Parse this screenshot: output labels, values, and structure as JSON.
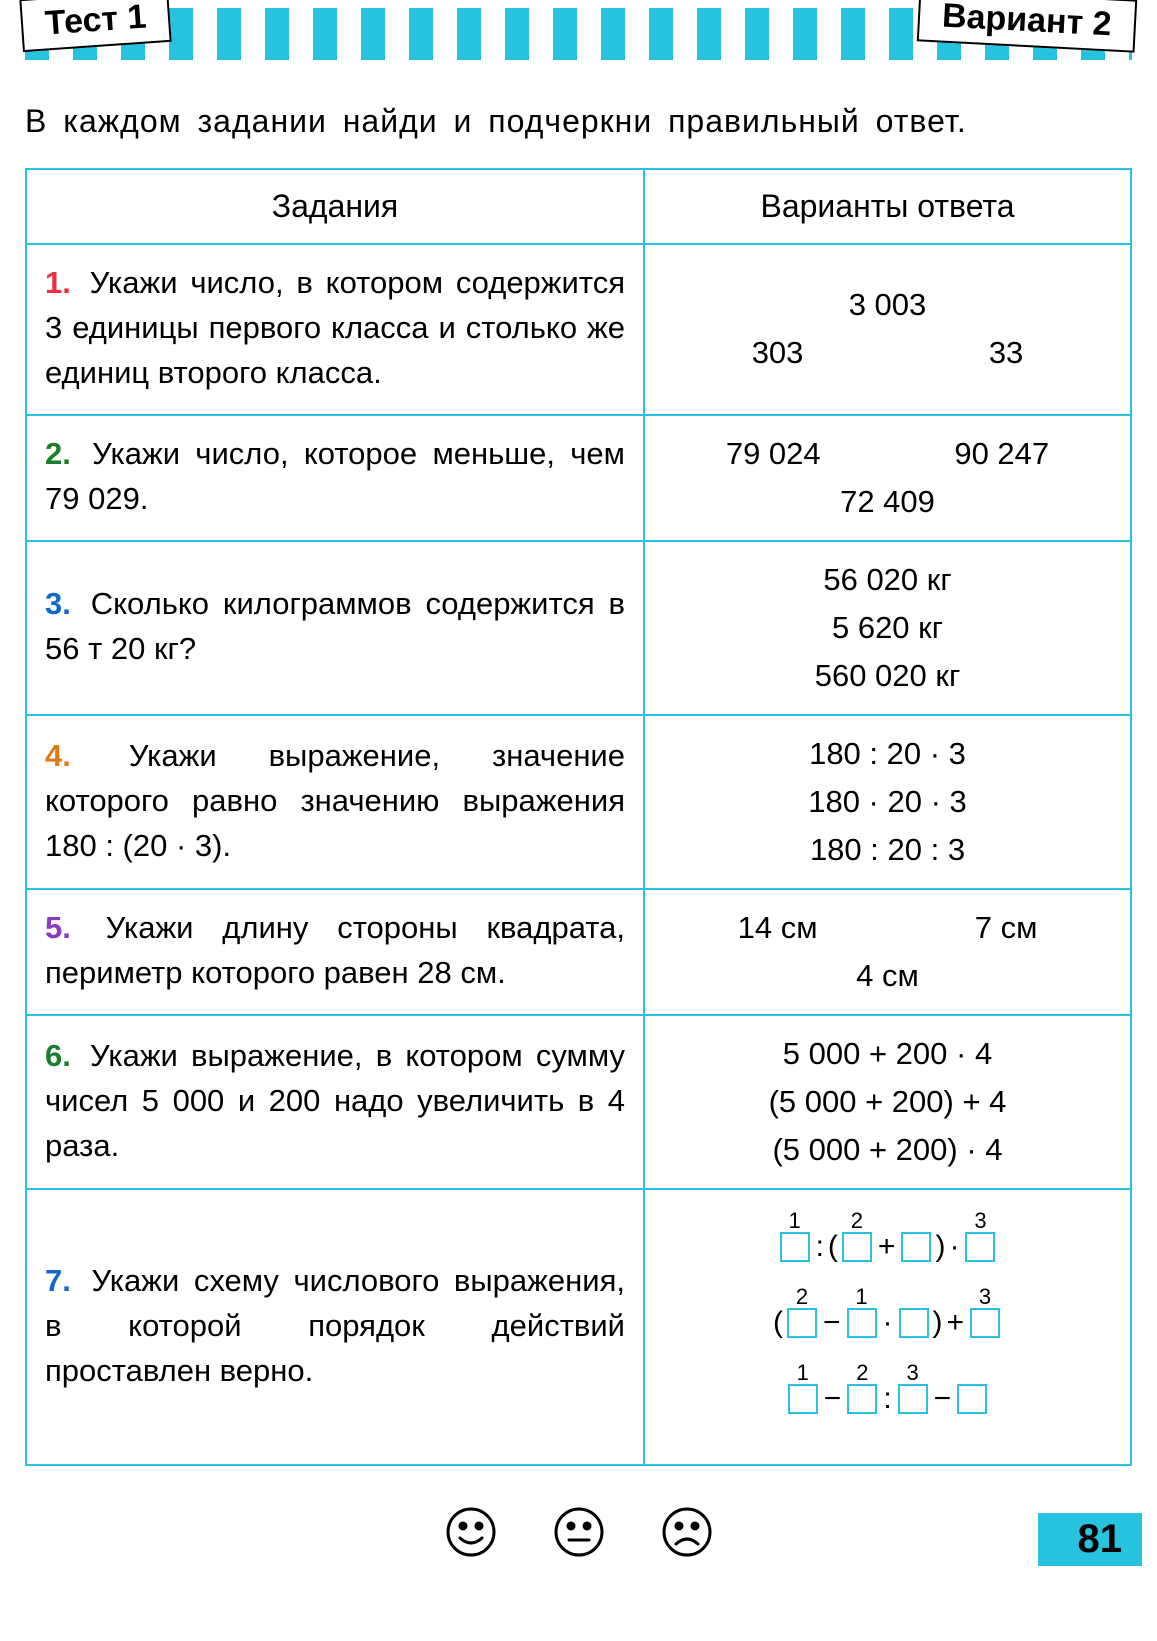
{
  "header": {
    "left": "Тест 1",
    "right": "Вариант 2"
  },
  "instruction": "В каждом задании найди и подчеркни правильный ответ.",
  "tableHeaders": {
    "tasks": "Задания",
    "answers": "Варианты ответа"
  },
  "tasks": [
    {
      "n": "1.",
      "text": "Укажи число, в котором содержится 3 единицы первого класса и столько же единиц второго класса.",
      "answers_top": "3 003",
      "answers_bot_a": "303",
      "answers_bot_b": "33"
    },
    {
      "n": "2.",
      "text": "Укажи число, которое меньше, чем 79 029.",
      "answers_top_a": "79 024",
      "answers_top_b": "90 247",
      "answers_bot": "72 409"
    },
    {
      "n": "3.",
      "text": "Сколько килограммов содержится в 56 т 20 кг?",
      "a1": "56 020 кг",
      "a2": "5 620 кг",
      "a3": "560 020 кг"
    },
    {
      "n": "4.",
      "text": "Укажи выражение, значение которого равно значению выражения 180 : (20 · 3).",
      "a1": "180 : 20 · 3",
      "a2": "180 · 20 · 3",
      "a3": "180 : 20 : 3"
    },
    {
      "n": "5.",
      "text": "Укажи длину стороны квадрата, периметр которого равен 28 см.",
      "answers_top_a": "14 см",
      "answers_top_b": "7 см",
      "answers_bot": "4 см"
    },
    {
      "n": "6.",
      "text": "Укажи выражение, в котором сумму чисел 5 000 и 200 надо увеличить в 4 раза.",
      "a1": "5 000 + 200 · 4",
      "a2": "(5 000 + 200) + 4",
      "a3": "(5 000 + 200) · 4"
    },
    {
      "n": "7.",
      "text": "Укажи схему числового выражения, в которой порядок действий проставлен верно.",
      "schemes": [
        {
          "seq": [
            {
              "t": "box",
              "ord": "1"
            },
            {
              "t": "op",
              "v": ":"
            },
            {
              "t": "lp",
              "v": "("
            },
            {
              "t": "box",
              "ord": "2"
            },
            {
              "t": "op",
              "v": "+"
            },
            {
              "t": "box"
            },
            {
              "t": "rp",
              "v": ")"
            },
            {
              "t": "op",
              "v": "·"
            },
            {
              "t": "box",
              "ord": "3"
            }
          ]
        },
        {
          "seq": [
            {
              "t": "lp",
              "v": "("
            },
            {
              "t": "box",
              "ord": "2"
            },
            {
              "t": "op",
              "v": "−"
            },
            {
              "t": "box",
              "ord": "1"
            },
            {
              "t": "op",
              "v": "·"
            },
            {
              "t": "box"
            },
            {
              "t": "rp",
              "v": ")"
            },
            {
              "t": "op",
              "v": "+"
            },
            {
              "t": "box",
              "ord": "3"
            }
          ]
        },
        {
          "seq": [
            {
              "t": "box",
              "ord": "1"
            },
            {
              "t": "op",
              "v": "−"
            },
            {
              "t": "box",
              "ord": "2"
            },
            {
              "t": "op",
              "v": ":"
            },
            {
              "t": "box",
              "ord": "3"
            },
            {
              "t": "op",
              "v": "−"
            },
            {
              "t": "box"
            }
          ]
        }
      ]
    }
  ],
  "pageNumber": "81",
  "colors": {
    "accent": "#26c2e0",
    "taskNums": [
      "#e8303f",
      "#1a7e2e",
      "#1068c8",
      "#e07a16",
      "#8a3bc4",
      "#1a7e2e",
      "#1068c8"
    ]
  }
}
